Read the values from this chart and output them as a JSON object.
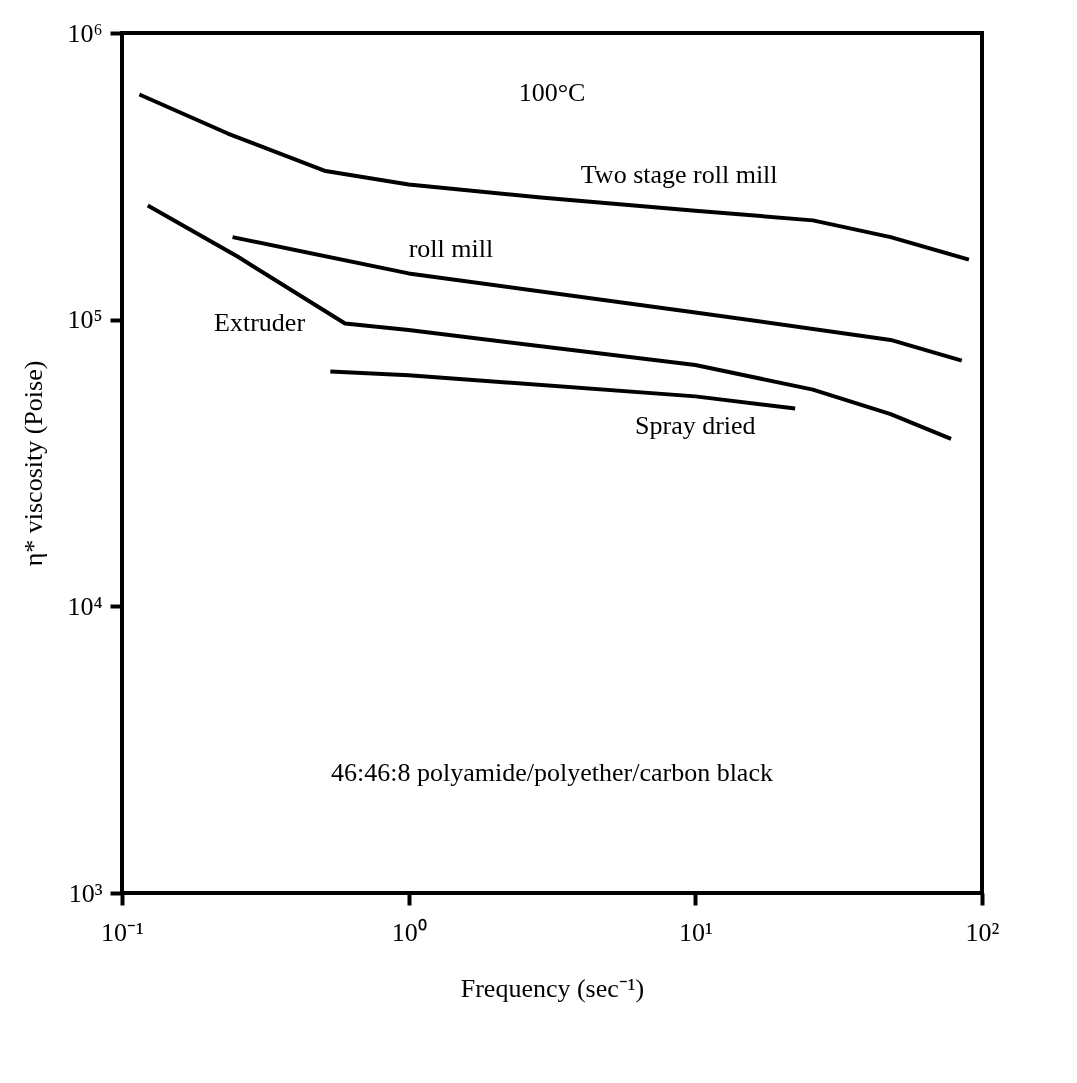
{
  "chart_data": {
    "type": "line",
    "xlabel": "Frequency (sec⁻¹)",
    "ylabel": "η* viscosity (Poise)",
    "annotations": [
      "100°C",
      "46:46:8  polyamide/polyether/carbon black"
    ],
    "log": "xy",
    "marker": "none",
    "line_style": "solid",
    "xlim": [
      0.1,
      100
    ],
    "ylim": [
      1000,
      1000000
    ],
    "xticks": [
      {
        "value": 0.1,
        "label": "10⁻¹"
      },
      {
        "value": 1,
        "label": "10⁰"
      },
      {
        "value": 10,
        "label": "10¹"
      },
      {
        "value": 100,
        "label": "10²"
      }
    ],
    "yticks": [
      {
        "value": 1000,
        "label": "10³"
      },
      {
        "value": 10000,
        "label": "10⁴"
      },
      {
        "value": 100000,
        "label": "10⁵"
      },
      {
        "value": 1000000,
        "label": "10⁶"
      }
    ],
    "series": [
      {
        "name": "Two stage roll mill",
        "color": "#000000",
        "x": [
          0.115,
          0.234,
          0.513,
          1.0,
          2.89,
          10,
          25.7,
          48,
          90
        ],
        "values": [
          610000,
          446000,
          330000,
          296000,
          267000,
          240000,
          222000,
          194000,
          162000
        ]
      },
      {
        "name": "roll mill",
        "color": "#000000",
        "x": [
          0.243,
          1.0,
          10,
          48,
          85
        ],
        "values": [
          194000,
          145000,
          106000,
          85000,
          72000
        ]
      },
      {
        "name": "Extruder",
        "color": "#000000",
        "x": [
          0.123,
          0.253,
          0.6,
          1.0,
          10,
          25.7,
          48,
          78
        ],
        "values": [
          250000,
          166000,
          97000,
          92000,
          69500,
          57000,
          46800,
          38400
        ]
      },
      {
        "name": "Spray dried",
        "color": "#000000",
        "x": [
          0.533,
          1.0,
          10,
          22.3
        ],
        "values": [
          66000,
          64000,
          54000,
          49000
        ]
      }
    ]
  }
}
